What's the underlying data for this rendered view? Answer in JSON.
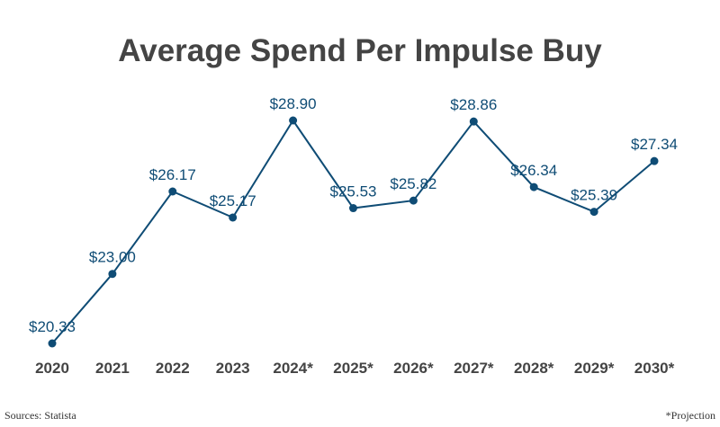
{
  "chart_data": {
    "type": "line",
    "title": "Average Spend Per Impulse Buy",
    "xlabel": "",
    "ylabel": "",
    "categories": [
      "2020",
      "2021",
      "2022",
      "2023",
      "2024*",
      "2025*",
      "2026*",
      "2027*",
      "2028*",
      "2029*",
      "2030*"
    ],
    "series": [
      {
        "name": "Average Spend",
        "values": [
          20.33,
          23.0,
          26.17,
          25.17,
          28.9,
          25.53,
          25.82,
          28.86,
          26.34,
          25.39,
          27.34
        ],
        "labels": [
          "$20.33",
          "$23.00",
          "$26.17",
          "$25.17",
          "$28.90",
          "$25.53",
          "$25.82",
          "$28.86",
          "$26.34",
          "$25.39",
          "$27.34"
        ],
        "color": "#0f4c75"
      }
    ],
    "ylim": [
      20.33,
      28.9
    ],
    "grid": false,
    "legend": "none",
    "source": "Sources: Statista",
    "footnote": "*Projection"
  }
}
